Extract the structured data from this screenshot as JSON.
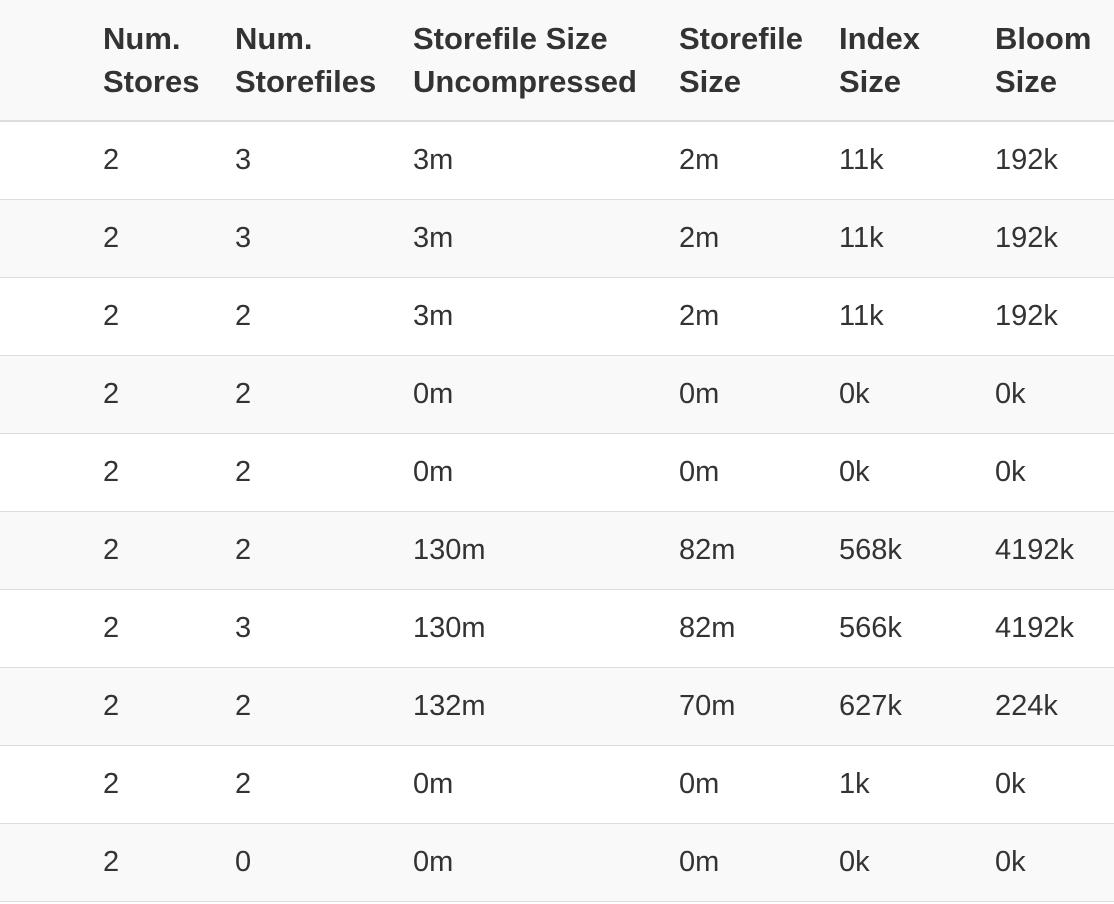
{
  "table": {
    "columns": [
      "Num.\nStores",
      "Num.\nStorefiles",
      "Storefile Size\nUncompressed",
      "Storefile\nSize",
      "Index\nSize",
      "Bloom\nSize"
    ],
    "header": {
      "num_stores": [
        "Num.",
        "Stores"
      ],
      "num_storefiles": [
        "Num.",
        "Storefiles"
      ],
      "storefile_size_uncompressed": [
        "Storefile Size",
        "Uncompressed"
      ],
      "storefile_size": [
        "Storefile",
        "Size"
      ],
      "index_size": [
        "Index",
        "Size"
      ],
      "bloom_size": [
        "Bloom",
        "Size"
      ]
    },
    "rows": [
      [
        "2",
        "3",
        "3m",
        "2m",
        "11k",
        "192k"
      ],
      [
        "2",
        "3",
        "3m",
        "2m",
        "11k",
        "192k"
      ],
      [
        "2",
        "2",
        "3m",
        "2m",
        "11k",
        "192k"
      ],
      [
        "2",
        "2",
        "0m",
        "0m",
        "0k",
        "0k"
      ],
      [
        "2",
        "2",
        "0m",
        "0m",
        "0k",
        "0k"
      ],
      [
        "2",
        "2",
        "130m",
        "82m",
        "568k",
        "4192k"
      ],
      [
        "2",
        "3",
        "130m",
        "82m",
        "566k",
        "4192k"
      ],
      [
        "2",
        "2",
        "132m",
        "70m",
        "627k",
        "224k"
      ],
      [
        "2",
        "2",
        "0m",
        "0m",
        "1k",
        "0k"
      ],
      [
        "2",
        "0",
        "0m",
        "0m",
        "0k",
        "0k"
      ]
    ]
  },
  "colors": {
    "text": "#333333",
    "stripe": "#f9f9f9",
    "border": "#dddddd"
  }
}
